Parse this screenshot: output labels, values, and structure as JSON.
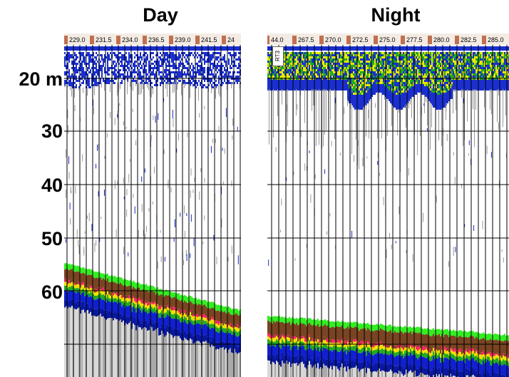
{
  "titles": {
    "day": "Day",
    "night": "Night"
  },
  "depth_labels": [
    "20 m",
    "30",
    "40",
    "50",
    "60"
  ],
  "day": {
    "ticks": [
      "229.0",
      "231.5",
      "234.0",
      "236.5",
      "239.0",
      "241.5",
      "24"
    ]
  },
  "night": {
    "ticks": [
      "44.0",
      "267.5",
      "270.0",
      "272.5",
      "275.0",
      "277.5",
      "280.0",
      "282.5",
      "285.0"
    ],
    "marker": "RT3"
  },
  "colors": {
    "surface_blue": "#1a2fd0",
    "surface_yellow": "#e8e800",
    "bottom_green": "#33ee22",
    "bottom_brown": "#7a4422",
    "bottom_red": "#ff2266",
    "bottom_yellow": "#f0e000",
    "bottom_blue": "#1020d0",
    "scatter_grey": "#999999"
  }
}
